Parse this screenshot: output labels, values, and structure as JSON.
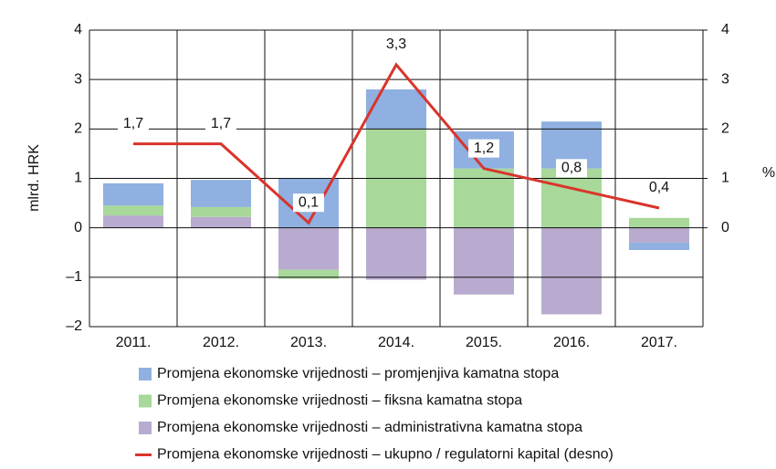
{
  "chart_data": {
    "type": "bar",
    "stacked": true,
    "y_label": "mlrd. HRK",
    "y2_label": "%",
    "categories": [
      "2011.",
      "2012.",
      "2013.",
      "2014.",
      "2015.",
      "2016.",
      "2017."
    ],
    "series": [
      {
        "name": "Promjena ekonomske vrijednosti – promjenjiva kamatna stopa",
        "color": "#8fb0e0",
        "values": [
          0.45,
          0.55,
          1.0,
          0.8,
          0.75,
          0.95,
          -0.15
        ]
      },
      {
        "name": "Promjena ekonomske vrijednosti – fiksna kamatna stopa",
        "color": "#a8d89a",
        "values": [
          0.2,
          0.2,
          -0.18,
          2.0,
          1.2,
          1.2,
          0.2
        ]
      },
      {
        "name": "Promjena ekonomske vrijednosti – administrativna kamatna stopa",
        "color": "#b9abcf",
        "values": [
          0.25,
          0.22,
          -0.85,
          -1.05,
          -1.35,
          -1.75,
          -0.3
        ]
      },
      {
        "name": "Promjena ekonomske vrijednosti – ukupno / regulatorni kapital (desno)",
        "color": "#d9342b",
        "type": "line",
        "axis": "y2",
        "values": [
          1.7,
          1.7,
          0.1,
          3.3,
          1.2,
          0.8,
          0.4
        ],
        "value_labels": [
          "1,7",
          "1,7",
          "0,1",
          "3,3",
          "1,2",
          "0,8",
          "0,4"
        ]
      }
    ],
    "ylim": [
      -2,
      4
    ],
    "yticks": [
      {
        "value": -2,
        "label": "–2"
      },
      {
        "value": -1,
        "label": "–1"
      },
      0,
      1,
      2,
      3,
      4
    ],
    "y2lim": [
      -2,
      4
    ],
    "y2ticks": [
      0,
      1,
      2,
      3,
      4
    ],
    "grid": true
  }
}
